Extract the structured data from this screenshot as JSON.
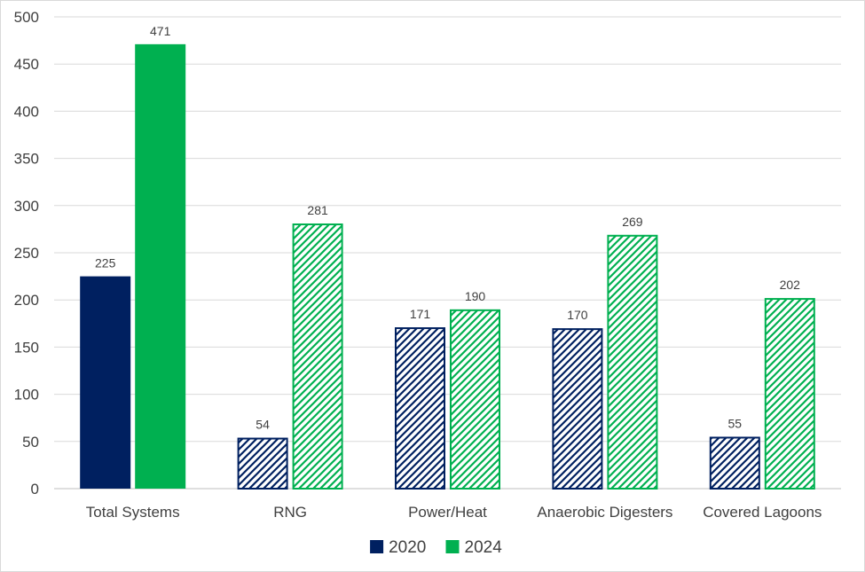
{
  "chart_data": {
    "type": "bar",
    "title": "",
    "xlabel": "",
    "ylabel": "",
    "ylim": [
      0,
      500
    ],
    "yticks": [
      0,
      50,
      100,
      150,
      200,
      250,
      300,
      350,
      400,
      450,
      500
    ],
    "grid": true,
    "legend_position": "bottom",
    "categories": [
      "Total Systems",
      "RNG",
      "Power/Heat",
      "Anaerobic Digesters",
      "Covered Lagoons"
    ],
    "series": [
      {
        "name": "2020",
        "color": "#002060",
        "values": [
          225,
          54,
          171,
          170,
          55
        ],
        "hatched": [
          false,
          true,
          true,
          true,
          true
        ]
      },
      {
        "name": "2024",
        "color": "#00b050",
        "values": [
          471,
          281,
          190,
          269,
          202
        ],
        "hatched": [
          false,
          true,
          true,
          true,
          true
        ]
      }
    ]
  }
}
